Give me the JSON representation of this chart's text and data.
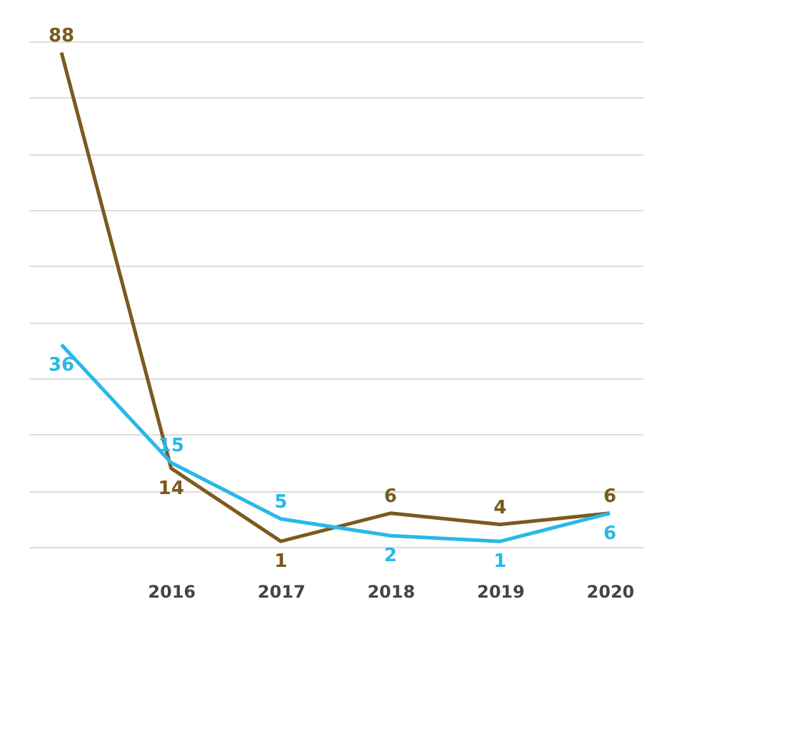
{
  "chart_data": {
    "type": "line",
    "categories": [
      null,
      "2016",
      "2017",
      "2018",
      "2019",
      "2020"
    ],
    "series": [
      {
        "color": "#7a5a1e",
        "values": [
          88,
          14,
          1,
          6,
          4,
          6
        ]
      },
      {
        "color": "#29b8e8",
        "values": [
          36,
          15,
          5,
          2,
          1,
          6
        ]
      }
    ],
    "grid": "y",
    "tick_labels": "x",
    "data_labels": true,
    "marker": "none",
    "line_style": "solid",
    "legend": false
  }
}
